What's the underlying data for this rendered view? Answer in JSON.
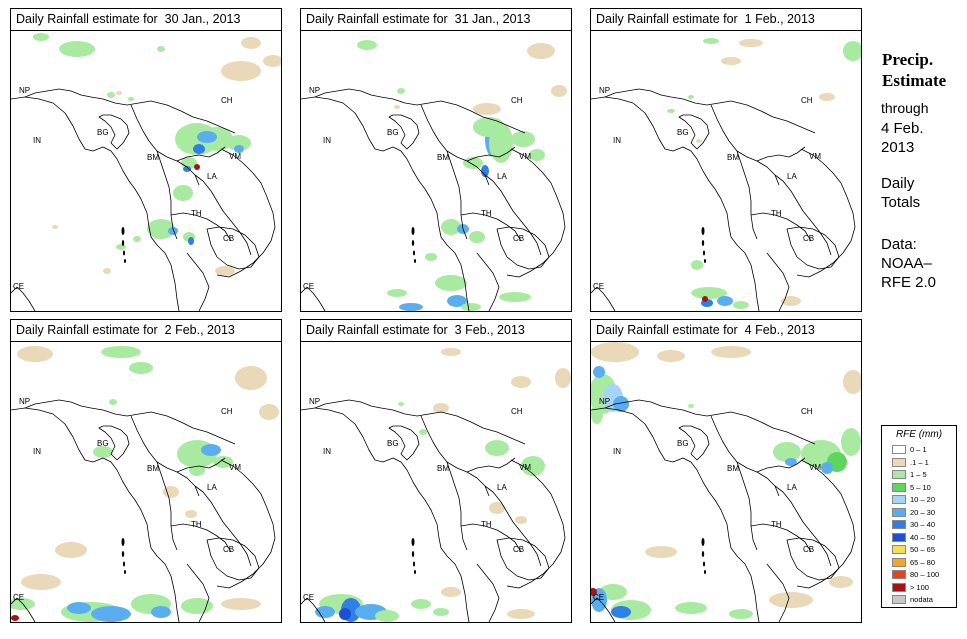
{
  "panels": [
    {
      "title": "Daily Rainfall estimate for  30 Jan., 2013",
      "rain": "p1"
    },
    {
      "title": "Daily Rainfall estimate for  31 Jan., 2013",
      "rain": "p2"
    },
    {
      "title": "Daily Rainfall estimate for  1 Feb., 2013",
      "rain": "p3"
    },
    {
      "title": "Daily Rainfall estimate for  2 Feb., 2013",
      "rain": "p4"
    },
    {
      "title": "Daily Rainfall estimate for  3 Feb., 2013",
      "rain": "p5"
    },
    {
      "title": "Daily Rainfall estimate for  4 Feb., 2013",
      "rain": "p6"
    }
  ],
  "map_labels": [
    "NP",
    "CH",
    "IN",
    "BG",
    "BM",
    "VM",
    "LA",
    "TH",
    "CB",
    "CE"
  ],
  "side": {
    "title_line1": "Precip.",
    "title_line2": "Estimate",
    "through": "through",
    "date_line1": "4 Feb.",
    "date_line2": "2013",
    "daily": "Daily",
    "totals": "Totals",
    "data_line1": "Data:",
    "data_line2": "NOAA–",
    "data_line3": "RFE 2.0"
  },
  "legend": {
    "title": "RFE (mm)",
    "items": [
      {
        "label": "0 – 1",
        "color": "#ffffff"
      },
      {
        "label": ".1 – 1",
        "color": "#ead9b8"
      },
      {
        "label": "1 – 5",
        "color": "#a8eba0"
      },
      {
        "label": "5 – 10",
        "color": "#5ed65e"
      },
      {
        "label": "10 – 20",
        "color": "#a6d4f5"
      },
      {
        "label": "20 – 30",
        "color": "#5aaef0"
      },
      {
        "label": "30 – 40",
        "color": "#2e7fe6"
      },
      {
        "label": "40 – 50",
        "color": "#1a4fd6"
      },
      {
        "label": "50 – 65",
        "color": "#f5dd55"
      },
      {
        "label": "65 – 80",
        "color": "#f5a623"
      },
      {
        "label": "80 – 100",
        "color": "#e8431a"
      },
      {
        "label": "> 100",
        "color": "#a31515"
      },
      {
        "label": "nodata",
        "color": "#c8c8c8"
      }
    ]
  }
}
